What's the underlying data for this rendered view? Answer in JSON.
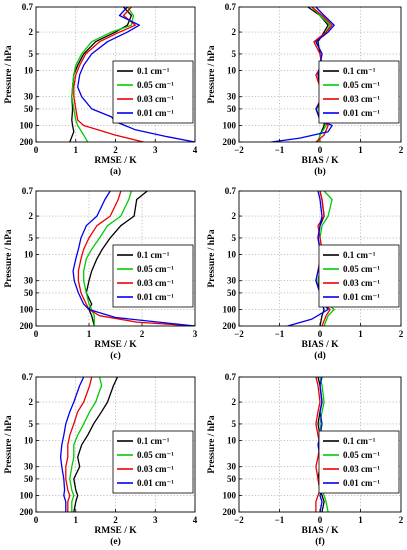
{
  "legend_entries": [
    "0.1 cm⁻¹",
    "0.05 cm⁻¹",
    "0.03 cm⁻¹",
    "0.01 cm⁻¹"
  ],
  "colors": {
    "0.1": "#000000",
    "0.05": "#00cc00",
    "0.03": "#ee0000",
    "0.01": "#0000ee",
    "grid": "#9a9a9a"
  },
  "chart_data": [
    {
      "type": "line",
      "panel_label": "(a)",
      "xlabel": "RMSE / K",
      "ylabel": "Pressure / hPa",
      "xlim": [
        0,
        4
      ],
      "xticks": [
        "0",
        "1",
        "2",
        "3",
        "4"
      ],
      "ylim": [
        0.7,
        200
      ],
      "y_scale": "log",
      "y_inverted": true,
      "yticks": [
        "0.7",
        "2",
        "5",
        "10",
        "30",
        "50",
        "100",
        "200"
      ],
      "grid": true,
      "legend": "right",
      "series": [
        {
          "name": "0.1 cm⁻¹",
          "x": [
            2.2,
            2.4,
            2.3,
            2.0,
            1.5,
            1.2,
            1.05,
            0.95,
            0.92,
            0.9,
            0.92,
            0.9,
            0.92,
            0.95,
            0.85
          ],
          "y": [
            0.7,
            1,
            1.5,
            2,
            3,
            5,
            8,
            12,
            20,
            30,
            50,
            80,
            100,
            130,
            200
          ]
        },
        {
          "name": "0.05 cm⁻¹",
          "x": [
            2.3,
            2.45,
            2.4,
            1.9,
            1.4,
            1.15,
            1.0,
            0.95,
            0.92,
            0.9,
            0.95,
            1.0,
            1.05,
            1.2,
            1.3
          ],
          "y": [
            0.7,
            1,
            1.5,
            2,
            3,
            5,
            8,
            12,
            20,
            30,
            50,
            80,
            100,
            150,
            200
          ]
        },
        {
          "name": "0.03 cm⁻¹",
          "x": [
            2.4,
            2.2,
            2.5,
            2.1,
            1.6,
            1.25,
            1.1,
            1.0,
            0.95,
            0.95,
            1.0,
            1.05,
            1.2,
            2.0,
            2.7
          ],
          "y": [
            0.7,
            1,
            1.5,
            2,
            3,
            5,
            8,
            12,
            20,
            30,
            50,
            80,
            100,
            150,
            200
          ]
        },
        {
          "name": "0.01 cm⁻¹",
          "x": [
            2.3,
            2.1,
            2.6,
            2.3,
            1.8,
            1.4,
            1.2,
            1.1,
            1.05,
            1.15,
            1.4,
            1.9,
            2.0,
            2.5,
            3.3,
            4.0
          ],
          "y": [
            0.7,
            1,
            1.5,
            2,
            3,
            5,
            8,
            12,
            20,
            30,
            50,
            70,
            85,
            120,
            160,
            200
          ]
        }
      ]
    },
    {
      "type": "line",
      "panel_label": "(b)",
      "xlabel": "BIAS / K",
      "ylabel": "Pressure / hPa",
      "xlim": [
        -2,
        2
      ],
      "xticks": [
        "−2",
        "−1",
        "0",
        "1",
        "2"
      ],
      "ylim": [
        0.7,
        200
      ],
      "y_scale": "log",
      "y_inverted": true,
      "yticks": [
        "0.7",
        "2",
        "5",
        "10",
        "30",
        "50",
        "100",
        "200"
      ],
      "grid": true,
      "legend": "right",
      "series": [
        {
          "name": "0.1 cm⁻¹",
          "x": [
            -0.3,
            0.0,
            0.2,
            0.1,
            -0.05,
            0.0,
            0.05,
            -0.05,
            0.0,
            0.05,
            0.0,
            0.1,
            0.1,
            0.0,
            -0.05
          ],
          "y": [
            0.7,
            1,
            1.5,
            2,
            3,
            5,
            8,
            12,
            20,
            30,
            50,
            80,
            100,
            150,
            200
          ]
        },
        {
          "name": "0.05 cm⁻¹",
          "x": [
            -0.2,
            0.0,
            0.25,
            0.15,
            -0.1,
            0.05,
            0.0,
            -0.05,
            0.05,
            0.0,
            -0.05,
            0.1,
            0.15,
            0.0,
            -0.05
          ],
          "y": [
            0.7,
            1,
            1.5,
            2,
            3,
            5,
            8,
            12,
            20,
            30,
            50,
            80,
            100,
            150,
            200
          ]
        },
        {
          "name": "0.03 cm⁻¹",
          "x": [
            -0.2,
            0.05,
            0.3,
            0.15,
            -0.15,
            0.0,
            0.05,
            -0.1,
            0.0,
            0.05,
            -0.1,
            0.05,
            0.2,
            0.1,
            -0.1
          ],
          "y": [
            0.7,
            1,
            1.5,
            2,
            3,
            5,
            8,
            12,
            20,
            30,
            50,
            80,
            100,
            150,
            200
          ]
        },
        {
          "name": "0.01 cm⁻¹",
          "x": [
            -0.1,
            0.1,
            0.35,
            0.2,
            -0.1,
            0.05,
            0.0,
            -0.05,
            0.05,
            0.1,
            -0.1,
            0.0,
            0.3,
            0.2,
            -0.5,
            -1.2
          ],
          "y": [
            0.7,
            1,
            1.5,
            2,
            3,
            5,
            8,
            12,
            20,
            30,
            50,
            80,
            100,
            130,
            170,
            200
          ]
        }
      ]
    },
    {
      "type": "line",
      "panel_label": "(c)",
      "xlabel": "RMSE / K",
      "ylabel": "Pressure / hPa",
      "xlim": [
        0,
        3
      ],
      "xticks": [
        "0",
        "1",
        "2",
        "3"
      ],
      "ylim": [
        0.7,
        200
      ],
      "y_scale": "log",
      "y_inverted": true,
      "yticks": [
        "0.7",
        "2",
        "5",
        "10",
        "30",
        "50",
        "100",
        "200"
      ],
      "grid": true,
      "legend": "right",
      "series": [
        {
          "name": "0.1 cm⁻¹",
          "x": [
            2.1,
            1.9,
            1.85,
            1.6,
            1.4,
            1.25,
            1.15,
            1.05,
            1.0,
            0.95,
            1.05,
            1.0,
            1.05,
            1.1
          ],
          "y": [
            0.7,
            1,
            2,
            3,
            5,
            8,
            12,
            20,
            30,
            50,
            80,
            100,
            130,
            200
          ]
        },
        {
          "name": "0.05 cm⁻¹",
          "x": [
            1.8,
            1.75,
            1.6,
            1.35,
            1.2,
            1.05,
            0.95,
            0.9,
            0.9,
            0.95,
            1.0,
            1.05,
            1.1,
            1.1
          ],
          "y": [
            0.7,
            1,
            2,
            3,
            5,
            8,
            12,
            20,
            30,
            50,
            80,
            100,
            130,
            200
          ]
        },
        {
          "name": "0.03 cm⁻¹",
          "x": [
            1.6,
            1.55,
            1.4,
            1.15,
            1.0,
            0.9,
            0.85,
            0.8,
            0.8,
            0.85,
            0.95,
            1.0,
            1.2,
            1.9,
            3.0
          ],
          "y": [
            0.7,
            1,
            2,
            3,
            5,
            8,
            12,
            20,
            30,
            50,
            80,
            100,
            130,
            170,
            200
          ]
        },
        {
          "name": "0.01 cm⁻¹",
          "x": [
            1.4,
            1.3,
            1.15,
            0.95,
            0.85,
            0.8,
            0.75,
            0.7,
            0.72,
            0.8,
            0.9,
            1.0,
            1.5,
            3.0
          ],
          "y": [
            0.7,
            1,
            2,
            3,
            5,
            8,
            12,
            20,
            30,
            50,
            80,
            100,
            140,
            200
          ]
        }
      ]
    },
    {
      "type": "line",
      "panel_label": "(d)",
      "xlabel": "BIAS / K",
      "ylabel": "Pressure / hPa",
      "xlim": [
        -2,
        2
      ],
      "xticks": [
        "−2",
        "−1",
        "0",
        "1",
        "2"
      ],
      "ylim": [
        0.7,
        200
      ],
      "y_scale": "log",
      "y_inverted": true,
      "yticks": [
        "0.7",
        "2",
        "5",
        "10",
        "30",
        "50",
        "100",
        "200"
      ],
      "grid": true,
      "legend": "right",
      "series": [
        {
          "name": "0.1 cm⁻¹",
          "x": [
            0.0,
            0.05,
            0.1,
            0.0,
            -0.05,
            0.0,
            0.05,
            0.0,
            -0.05,
            0.0,
            0.05,
            0.1,
            0.05,
            0.0
          ],
          "y": [
            0.7,
            1,
            2,
            3,
            5,
            8,
            12,
            20,
            30,
            50,
            80,
            100,
            130,
            200
          ]
        },
        {
          "name": "0.05 cm⁻¹",
          "x": [
            0.1,
            0.3,
            0.2,
            0.05,
            0.0,
            0.05,
            0.1,
            0.0,
            -0.05,
            0.05,
            0.2,
            0.35,
            0.2,
            0.1
          ],
          "y": [
            0.7,
            1,
            2,
            3,
            5,
            8,
            12,
            20,
            30,
            50,
            80,
            100,
            130,
            200
          ]
        },
        {
          "name": "0.03 cm⁻¹",
          "x": [
            0.0,
            0.05,
            0.1,
            -0.05,
            0.0,
            0.05,
            0.0,
            -0.05,
            -0.1,
            0.0,
            0.1,
            0.25,
            0.15,
            0.05
          ],
          "y": [
            0.7,
            1,
            2,
            3,
            5,
            8,
            12,
            20,
            30,
            50,
            80,
            100,
            130,
            200
          ]
        },
        {
          "name": "0.01 cm⁻¹",
          "x": [
            -0.05,
            0.0,
            0.05,
            0.0,
            -0.05,
            0.0,
            0.05,
            -0.05,
            -0.1,
            0.0,
            0.1,
            0.2,
            -0.2,
            -0.8
          ],
          "y": [
            0.7,
            1,
            2,
            3,
            5,
            8,
            12,
            20,
            30,
            50,
            80,
            100,
            150,
            200
          ]
        }
      ]
    },
    {
      "type": "line",
      "panel_label": "(e)",
      "xlabel": "RMSE / K",
      "ylabel": "Pressure / hPa",
      "xlim": [
        0,
        4
      ],
      "xticks": [
        "0",
        "1",
        "2",
        "3",
        "4"
      ],
      "ylim": [
        0.7,
        200
      ],
      "y_scale": "log",
      "y_inverted": true,
      "yticks": [
        "0.7",
        "2",
        "5",
        "10",
        "30",
        "50",
        "100",
        "200"
      ],
      "grid": true,
      "legend": "right",
      "series": [
        {
          "name": "0.1 cm⁻¹",
          "x": [
            2.05,
            1.95,
            1.8,
            1.65,
            1.45,
            1.3,
            1.15,
            1.05,
            1.1,
            0.95,
            1.0,
            1.05,
            1.0,
            0.95
          ],
          "y": [
            0.7,
            1,
            2,
            3,
            5,
            8,
            12,
            20,
            30,
            50,
            80,
            100,
            130,
            200
          ]
        },
        {
          "name": "0.05 cm⁻¹",
          "x": [
            1.6,
            1.65,
            1.5,
            1.35,
            1.2,
            1.05,
            0.95,
            0.95,
            0.9,
            0.85,
            0.9,
            0.95,
            0.9,
            0.9
          ],
          "y": [
            0.7,
            1,
            2,
            3,
            5,
            8,
            12,
            20,
            30,
            50,
            80,
            100,
            130,
            200
          ]
        },
        {
          "name": "0.03 cm⁻¹",
          "x": [
            1.4,
            1.35,
            1.2,
            1.05,
            0.95,
            0.85,
            0.8,
            0.8,
            0.75,
            0.75,
            0.8,
            0.85,
            0.8,
            0.8
          ],
          "y": [
            0.7,
            1,
            2,
            3,
            5,
            8,
            12,
            20,
            30,
            50,
            80,
            100,
            130,
            200
          ]
        },
        {
          "name": "0.01 cm⁻¹",
          "x": [
            1.2,
            1.1,
            0.95,
            0.85,
            0.75,
            0.7,
            0.65,
            0.62,
            0.65,
            0.7,
            0.72,
            0.7,
            0.75,
            0.75
          ],
          "y": [
            0.7,
            1,
            2,
            3,
            5,
            8,
            12,
            20,
            30,
            50,
            80,
            100,
            130,
            200
          ]
        }
      ]
    },
    {
      "type": "line",
      "panel_label": "(f)",
      "xlabel": "BIAS / K",
      "ylabel": "Pressure / hPa",
      "xlim": [
        -2,
        2
      ],
      "xticks": [
        "−2",
        "−1",
        "0",
        "1",
        "2"
      ],
      "ylim": [
        0.7,
        200
      ],
      "y_scale": "log",
      "y_inverted": true,
      "yticks": [
        "0.7",
        "2",
        "5",
        "10",
        "30",
        "50",
        "100",
        "200"
      ],
      "grid": true,
      "legend": "right",
      "series": [
        {
          "name": "0.1 cm⁻¹",
          "x": [
            -0.05,
            0.0,
            0.05,
            0.0,
            -0.05,
            0.0,
            0.05,
            0.1,
            0.0,
            -0.05,
            0.0,
            0.05,
            0.1,
            0.05
          ],
          "y": [
            0.7,
            1,
            2,
            3,
            5,
            8,
            12,
            20,
            30,
            50,
            80,
            100,
            130,
            200
          ]
        },
        {
          "name": "0.05 cm⁻¹",
          "x": [
            0.0,
            0.05,
            0.1,
            0.05,
            0.0,
            0.05,
            0.0,
            0.05,
            0.05,
            0.0,
            0.05,
            0.1,
            0.15,
            0.2
          ],
          "y": [
            0.7,
            1,
            2,
            3,
            5,
            8,
            12,
            20,
            30,
            50,
            80,
            100,
            130,
            200
          ]
        },
        {
          "name": "0.03 cm⁻¹",
          "x": [
            -0.1,
            -0.05,
            0.0,
            -0.05,
            -0.1,
            -0.05,
            0.0,
            -0.05,
            -0.1,
            -0.05,
            0.0,
            -0.05,
            -0.1,
            -0.1
          ],
          "y": [
            0.7,
            1,
            2,
            3,
            5,
            8,
            12,
            20,
            30,
            50,
            80,
            100,
            130,
            200
          ]
        },
        {
          "name": "0.01 cm⁻¹",
          "x": [
            0.05,
            0.0,
            0.05,
            0.0,
            0.05,
            0.0,
            -0.05,
            0.0,
            0.05,
            0.1,
            0.05,
            0.0,
            0.05,
            0.0
          ],
          "y": [
            0.7,
            1,
            2,
            3,
            5,
            8,
            12,
            20,
            30,
            50,
            80,
            100,
            130,
            200
          ]
        }
      ]
    }
  ]
}
